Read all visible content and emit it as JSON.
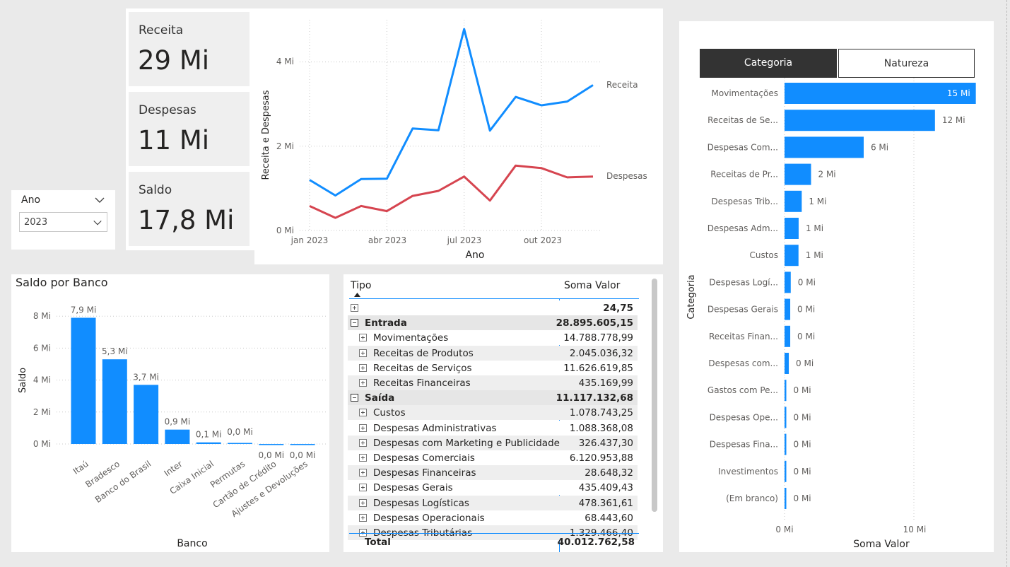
{
  "kpis": [
    {
      "label": "Receita",
      "value": "29 Mi"
    },
    {
      "label": "Despesas",
      "value": "11 Mi"
    },
    {
      "label": "Saldo",
      "value": "17,8 Mi"
    }
  ],
  "slicer": {
    "title": "Ano",
    "selected": "2023"
  },
  "line_chart": {
    "ylabel": "Receita e Despesas",
    "xlabel": "Ano",
    "y_ticks": [
      "0 Mi",
      "2 Mi",
      "4 Mi"
    ],
    "x_ticks": [
      "jan 2023",
      "abr 2023",
      "jul 2023",
      "out 2023"
    ],
    "series_labels": [
      "Receita",
      "Despesas"
    ]
  },
  "bank_chart": {
    "title": "Saldo por Banco",
    "ylabel": "Saldo",
    "xlabel": "Banco",
    "y_ticks": [
      "0 Mi",
      "2 Mi",
      "4 Mi",
      "6 Mi",
      "8 Mi"
    ],
    "data_labels": [
      "7,9 Mi",
      "5,3 Mi",
      "3,7 Mi",
      "0,9 Mi",
      "0,1 Mi",
      "0,0 Mi",
      "0,0 Mi",
      "0,0 Mi"
    ]
  },
  "category_chart": {
    "ylabel": "Categoria",
    "xlabel": "Soma Valor",
    "x_ticks": [
      "0 Mi",
      "10 Mi"
    ],
    "data_labels": [
      "15 Mi",
      "12 Mi",
      "6 Mi",
      "2 Mi",
      "1 Mi",
      "1 Mi",
      "1 Mi",
      "0 Mi",
      "0 Mi",
      "0 Mi",
      "0 Mi",
      "0 Mi",
      "0 Mi",
      "0 Mi",
      "0 Mi",
      "0 Mi"
    ]
  },
  "toggle": {
    "left": "Categoria",
    "right": "Natureza"
  },
  "matrix": {
    "col_tipo": "Tipo",
    "col_valor": "Soma Valor",
    "rows": [
      {
        "level": 0,
        "name": "",
        "value": "24,75",
        "bold": true,
        "icon": "plus"
      },
      {
        "level": 0,
        "name": "Entrada",
        "value": "28.895.605,15",
        "bold": true,
        "icon": "minus"
      },
      {
        "level": 1,
        "name": "Movimentações",
        "value": "14.788.778,99",
        "bold": false,
        "icon": "plus"
      },
      {
        "level": 1,
        "name": "Receitas de Produtos",
        "value": "2.045.036,32",
        "bold": false,
        "icon": "plus"
      },
      {
        "level": 1,
        "name": "Receitas de Serviços",
        "value": "11.626.619,85",
        "bold": false,
        "icon": "plus"
      },
      {
        "level": 1,
        "name": "Receitas Financeiras",
        "value": "435.169,99",
        "bold": false,
        "icon": "plus"
      },
      {
        "level": 0,
        "name": "Saída",
        "value": "11.117.132,68",
        "bold": true,
        "icon": "minus"
      },
      {
        "level": 1,
        "name": "Custos",
        "value": "1.078.743,25",
        "bold": false,
        "icon": "plus"
      },
      {
        "level": 1,
        "name": "Despesas Administrativas",
        "value": "1.088.368,08",
        "bold": false,
        "icon": "plus"
      },
      {
        "level": 1,
        "name": "Despesas com Marketing e Publicidade",
        "value": "326.437,30",
        "bold": false,
        "icon": "plus"
      },
      {
        "level": 1,
        "name": "Despesas Comerciais",
        "value": "6.120.953,88",
        "bold": false,
        "icon": "plus"
      },
      {
        "level": 1,
        "name": "Despesas Financeiras",
        "value": "28.648,32",
        "bold": false,
        "icon": "plus"
      },
      {
        "level": 1,
        "name": "Despesas Gerais",
        "value": "435.409,43",
        "bold": false,
        "icon": "plus"
      },
      {
        "level": 1,
        "name": "Despesas Logísticas",
        "value": "478.361,61",
        "bold": false,
        "icon": "plus"
      },
      {
        "level": 1,
        "name": "Despesas Operacionais",
        "value": "68.443,60",
        "bold": false,
        "icon": "plus"
      },
      {
        "level": 1,
        "name": "Despesas Tributárias",
        "value": "1.329.466,40",
        "bold": false,
        "icon": "plus"
      }
    ],
    "total_label": "Total",
    "total_value": "40.012.762,58"
  },
  "chart_data": [
    {
      "type": "line",
      "xlabel": "Ano",
      "ylabel": "Receita e Despesas",
      "x": [
        "2023-01",
        "2023-02",
        "2023-03",
        "2023-04",
        "2023-05",
        "2023-06",
        "2023-07",
        "2023-08",
        "2023-09",
        "2023-10",
        "2023-11",
        "2023-12"
      ],
      "series": [
        {
          "name": "Receita",
          "color": "#118DFF",
          "values": [
            1.2,
            0.83,
            1.22,
            1.23,
            2.42,
            2.38,
            4.78,
            2.37,
            3.17,
            2.97,
            3.06,
            3.45
          ]
        },
        {
          "name": "Despesas",
          "color": "#D64550",
          "values": [
            0.58,
            0.3,
            0.58,
            0.46,
            0.82,
            0.94,
            1.28,
            0.71,
            1.54,
            1.48,
            1.26,
            1.28
          ]
        }
      ],
      "ylim": [
        0,
        5
      ],
      "units": "Mi"
    },
    {
      "type": "bar",
      "title": "Saldo por Banco",
      "xlabel": "Banco",
      "ylabel": "Saldo",
      "categories": [
        "Itaú",
        "Bradesco",
        "Banco do Brasil",
        "Inter",
        "Caixa Inicial",
        "Permutas",
        "Cartão de Crédito",
        "Ajustes e Devoluções"
      ],
      "values": [
        7.9,
        5.3,
        3.7,
        0.9,
        0.1,
        0.0,
        -0.02,
        -0.02
      ],
      "ylim": [
        0,
        8.6
      ],
      "units": "Mi",
      "color": "#118DFF"
    },
    {
      "type": "bar",
      "orientation": "horizontal",
      "xlabel": "Soma Valor",
      "ylabel": "Categoria",
      "categories": [
        "Movimentações",
        "Receitas de Se...",
        "Despesas Com...",
        "Receitas de Pr...",
        "Despesas Trib...",
        "Despesas Adm...",
        "Custos",
        "Despesas Logí...",
        "Despesas Gerais",
        "Receitas Finan...",
        "Despesas com...",
        "Gastos com Pe...",
        "Despesas Ope...",
        "Despesas Fina...",
        "Investimentos",
        "(Em branco)"
      ],
      "values": [
        14.79,
        11.63,
        6.12,
        2.05,
        1.33,
        1.09,
        1.08,
        0.48,
        0.44,
        0.44,
        0.33,
        0.1,
        0.07,
        0.03,
        0.01,
        0.01
      ],
      "xlim": [
        0,
        14.79
      ],
      "units": "Mi",
      "color": "#118DFF"
    }
  ]
}
